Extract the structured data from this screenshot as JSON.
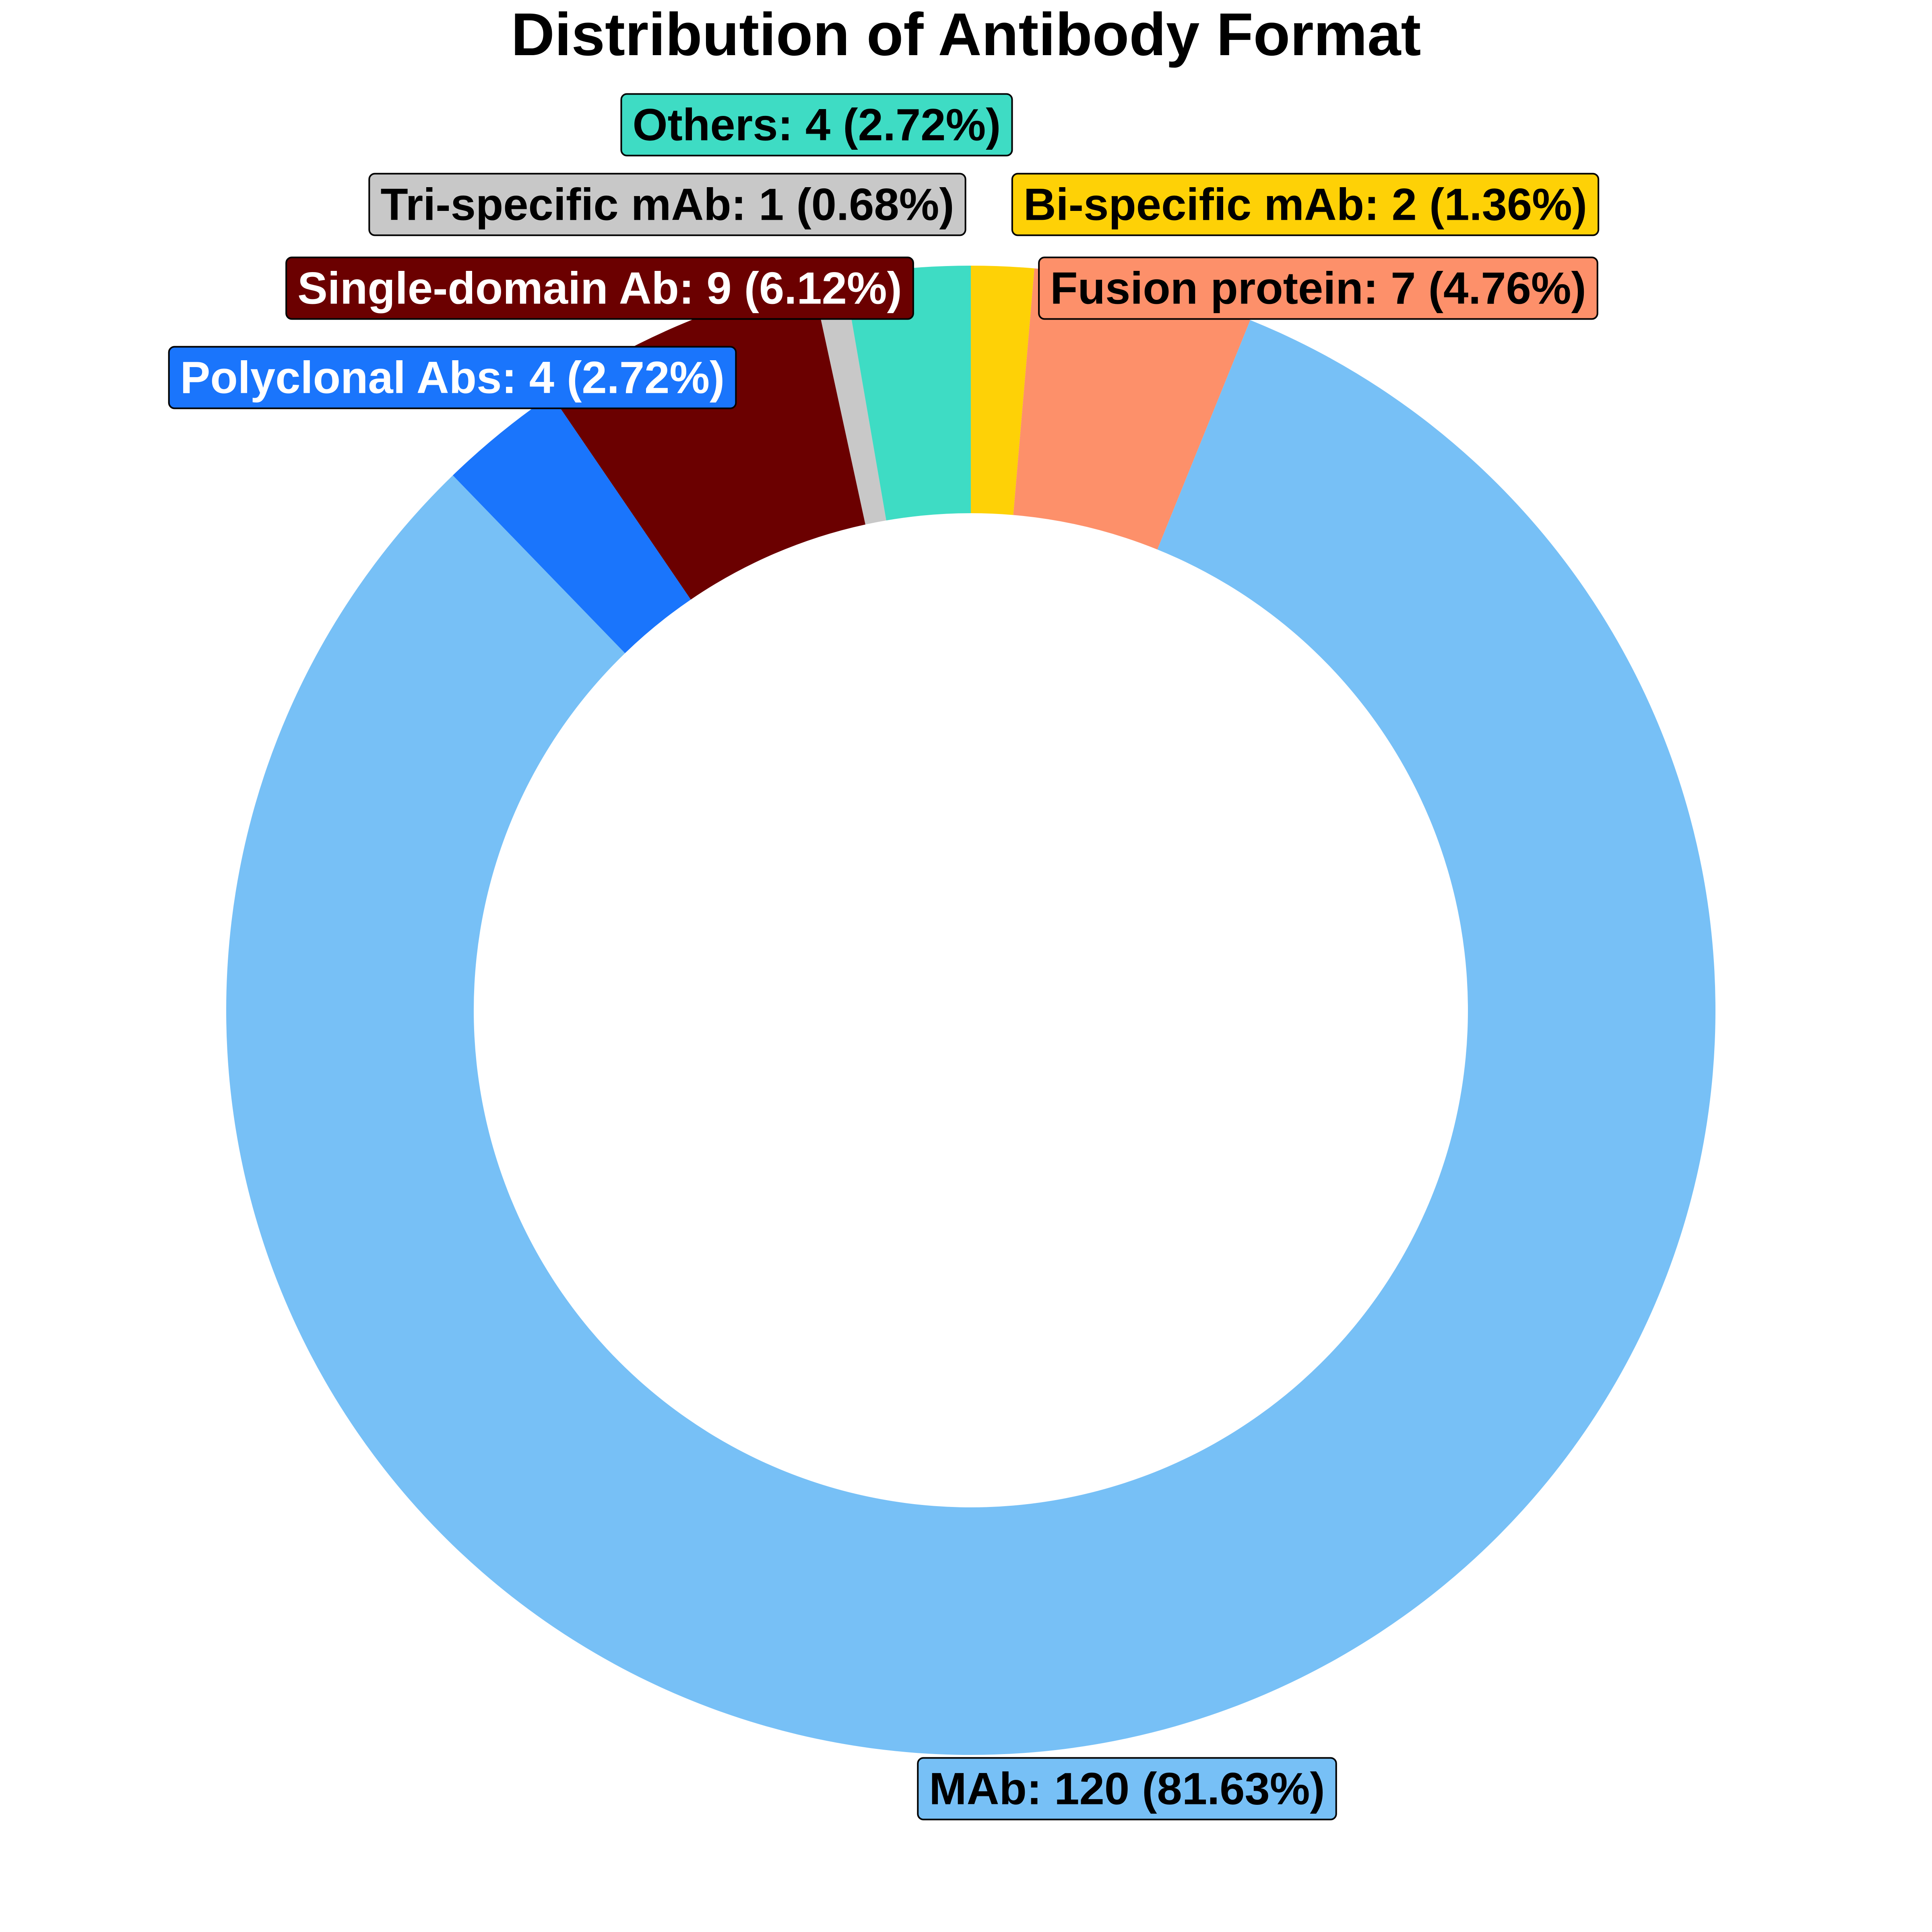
{
  "chart_data": {
    "type": "pie",
    "title": "Distribution of Antibody Format",
    "donut": true,
    "slices": [
      {
        "name": "MAb",
        "value": 120,
        "percent": "81.63%",
        "label": "MAb: 120 (81.63%)",
        "color": "#77C0F6",
        "text_color": "#000000"
      },
      {
        "name": "Polyclonal Abs",
        "value": 4,
        "percent": "2.72%",
        "label": "Polyclonal Abs: 4 (2.72%)",
        "color": "#1A75FC",
        "text_color": "#FFFFFF"
      },
      {
        "name": "Single-domain Ab",
        "value": 9,
        "percent": "6.12%",
        "label": "Single-domain Ab: 9 (6.12%)",
        "color": "#6B0000",
        "text_color": "#FFFFFF"
      },
      {
        "name": "Tri-specific mAb",
        "value": 1,
        "percent": "0.68%",
        "label": "Tri-specific mAb: 1 (0.68%)",
        "color": "#C8C8C8",
        "text_color": "#000000"
      },
      {
        "name": "Others",
        "value": 4,
        "percent": "2.72%",
        "label": "Others: 4 (2.72%)",
        "color": "#3EDCC4",
        "text_color": "#000000"
      },
      {
        "name": "Bi-specific mAb",
        "value": 2,
        "percent": "1.36%",
        "label": "Bi-specific mAb: 2 (1.36%)",
        "color": "#FED106",
        "text_color": "#000000"
      },
      {
        "name": "Fusion protein",
        "value": 7,
        "percent": "4.76%",
        "label": "Fusion protein: 7 (4.76%)",
        "color": "#FD906A",
        "text_color": "#000000"
      }
    ]
  }
}
